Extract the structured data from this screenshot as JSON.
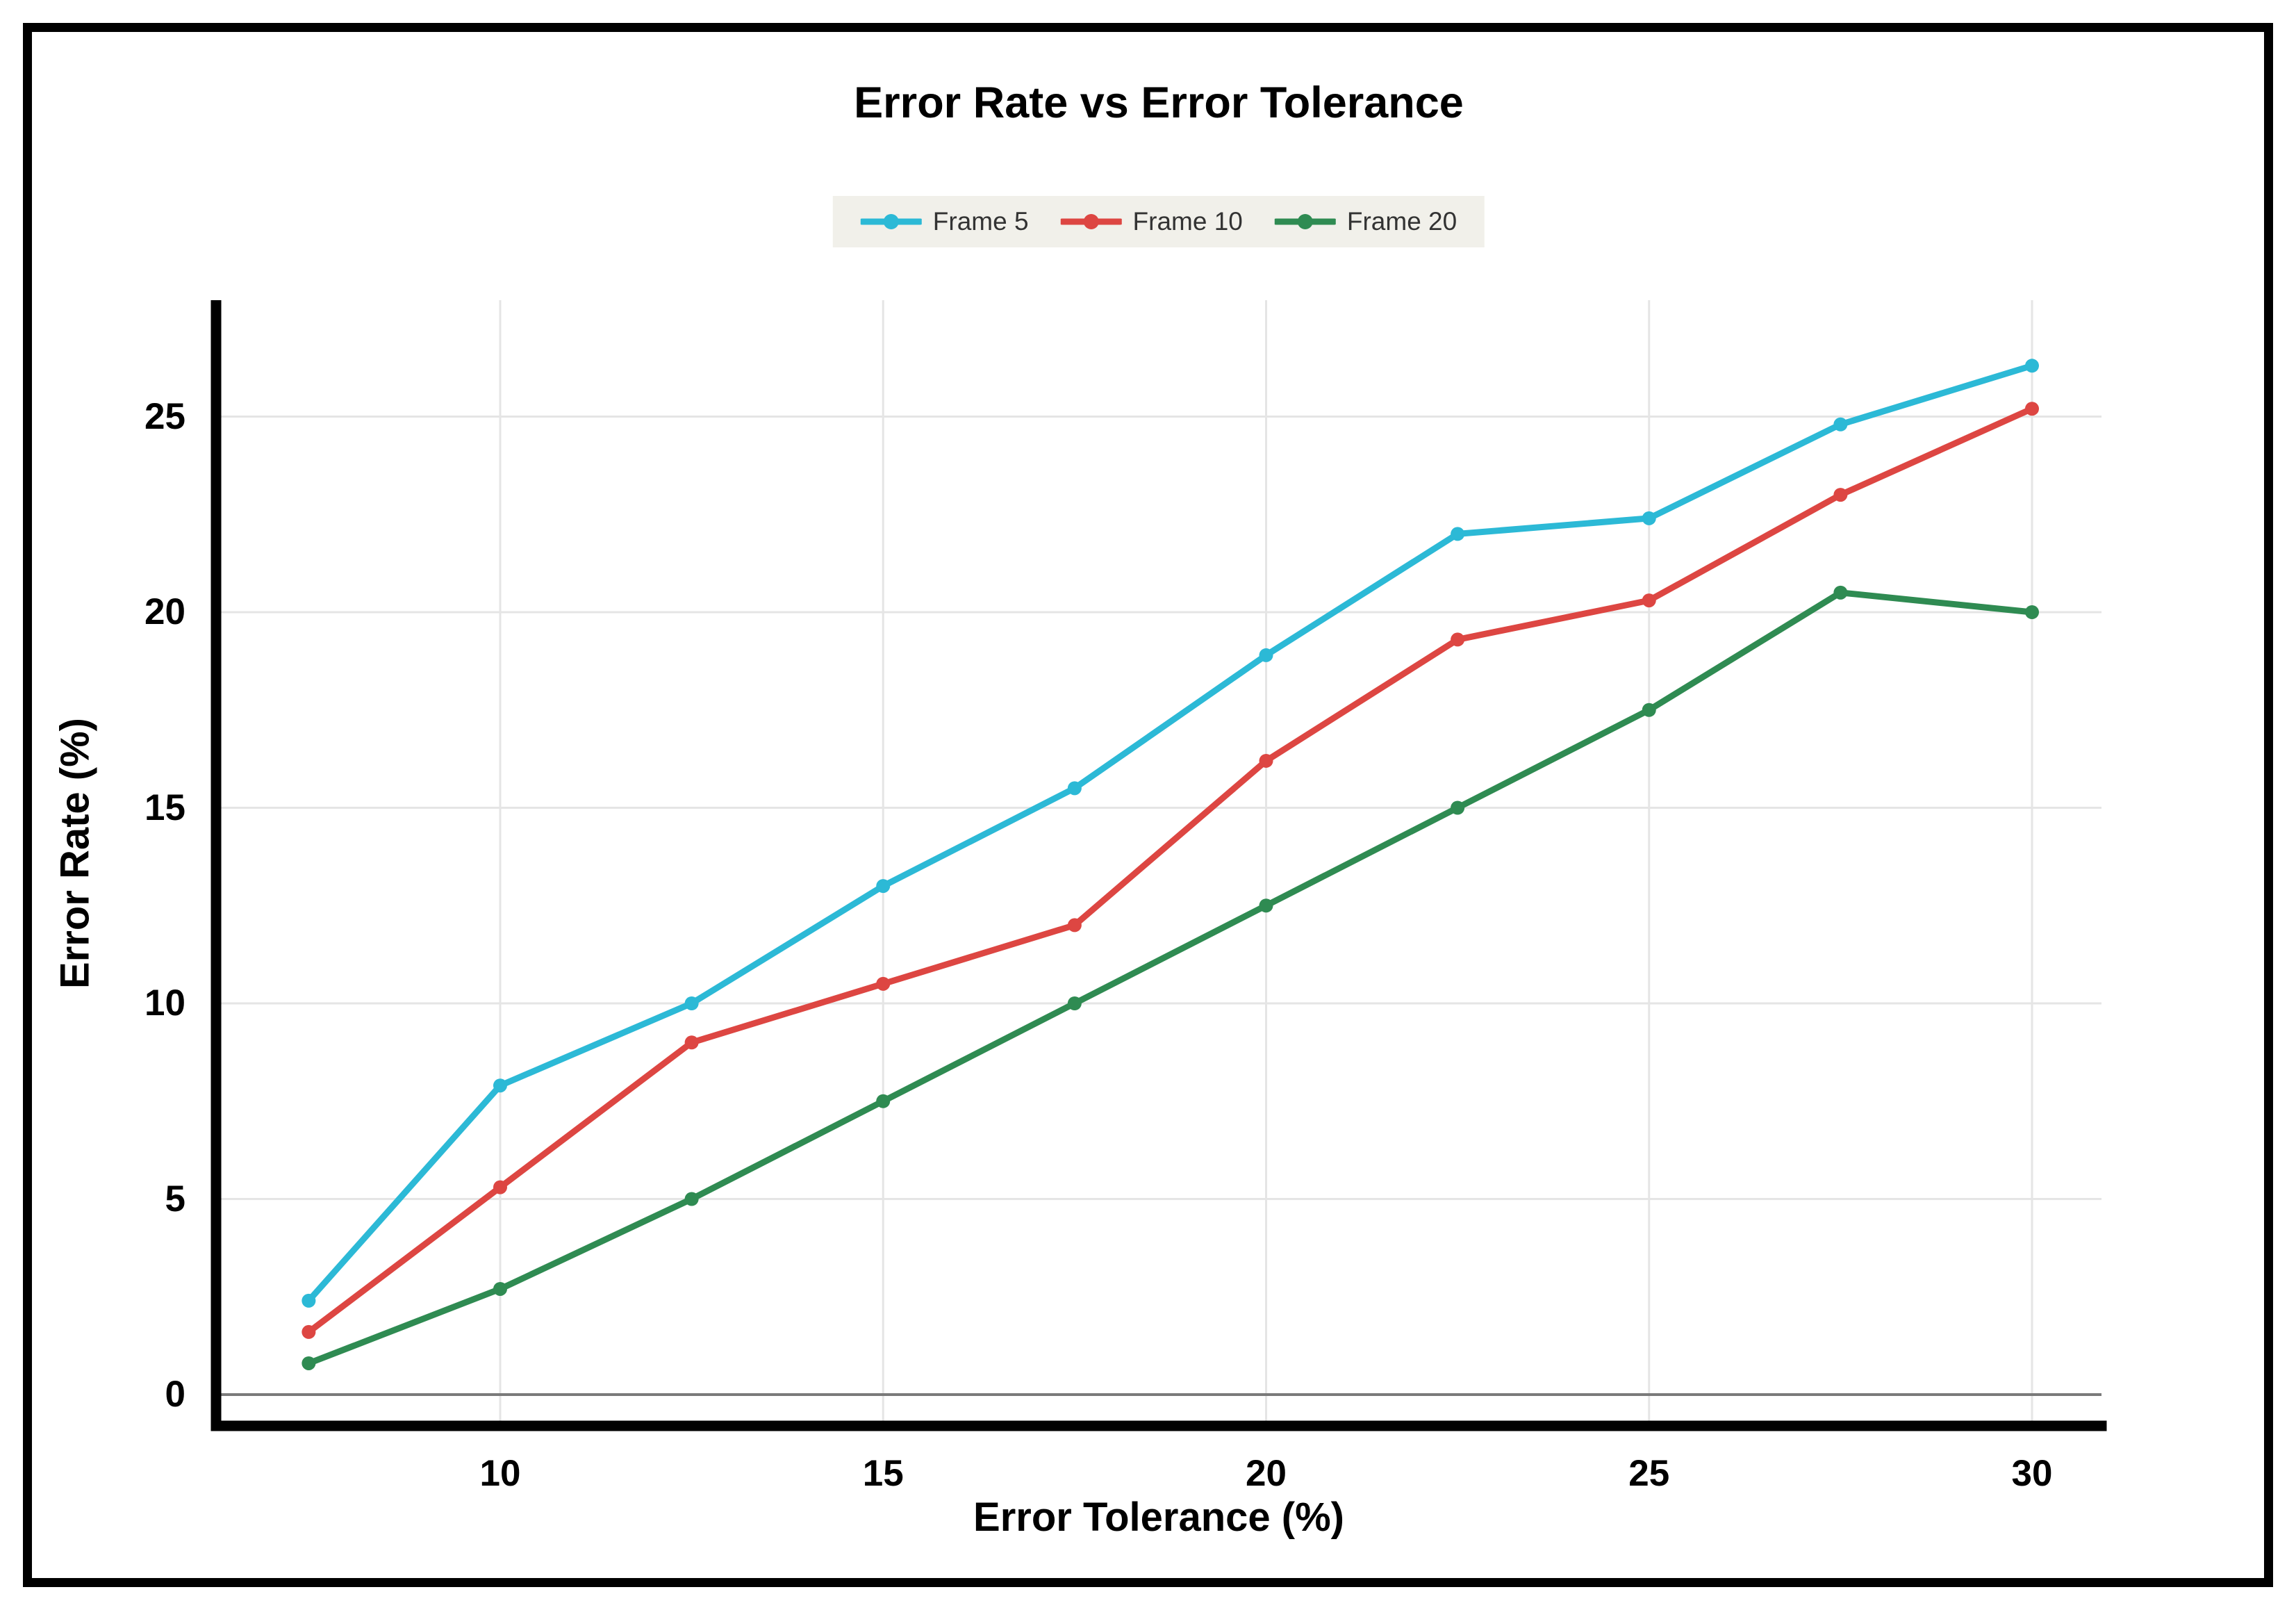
{
  "figure": {
    "title": "Error Rate vs Error Tolerance",
    "background_color": "#ffffff",
    "border_color": "#000000"
  },
  "chart_data": {
    "type": "line",
    "title": "Error Rate vs Error Tolerance",
    "xlabel": "Error Tolerance (%)",
    "ylabel": "Error Rate (%)",
    "x": [
      7.5,
      10,
      12.5,
      15,
      17.5,
      20,
      22.5,
      25,
      27.5,
      30
    ],
    "x_ticks": [
      10,
      15,
      20,
      25,
      30
    ],
    "y_ticks": [
      0,
      5,
      10,
      15,
      20,
      25
    ],
    "xlim": [
      6.2,
      30.9
    ],
    "ylim": [
      -0.9,
      28.0
    ],
    "grid": true,
    "legend_position": "top-center",
    "series": [
      {
        "name": "Frame 5",
        "color": "#2CB9D6",
        "values": [
          2.4,
          7.9,
          10.0,
          13.0,
          15.5,
          18.9,
          22.0,
          22.4,
          24.8,
          26.3
        ]
      },
      {
        "name": "Frame 10",
        "color": "#DD4642",
        "values": [
          1.6,
          5.3,
          9.0,
          10.5,
          12.0,
          16.2,
          19.3,
          20.3,
          23.0,
          25.2
        ]
      },
      {
        "name": "Frame 20",
        "color": "#2F8B52",
        "values": [
          0.8,
          2.7,
          5.0,
          7.5,
          10.0,
          12.5,
          15.0,
          17.5,
          20.5,
          20.0
        ]
      }
    ],
    "style": {
      "gridline_color": "#E5E5E5",
      "zero_line_color": "#7A7A7A",
      "spine_color": "#000000",
      "legend_background": "#F1F0EA",
      "legend_text_color": "#333333"
    }
  }
}
